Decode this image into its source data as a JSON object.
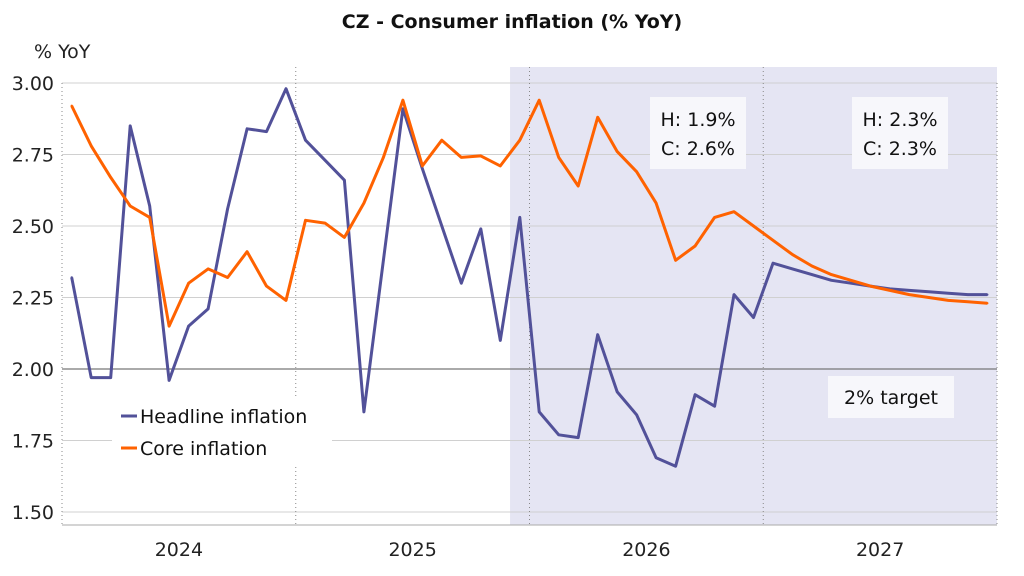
{
  "chart_data": {
    "type": "line",
    "title": "CZ - Consumer inflation (% YoY)",
    "ylabel": "% YoY",
    "xlabel": "",
    "ylim": [
      1.45,
      3.05
    ],
    "yticks": [
      "3.00",
      "2.75",
      "2.50",
      "2.25",
      "2.00",
      "1.75",
      "1.50"
    ],
    "ytick_values": [
      3.0,
      2.75,
      2.5,
      2.25,
      2.0,
      1.75,
      1.5
    ],
    "reference_line": 2.0,
    "years": [
      "2024",
      "2025",
      "2026",
      "2027"
    ],
    "forecast_start_index": 23,
    "grid": true,
    "legend_position": "bottom-left",
    "series": [
      {
        "name": "Headline inflation",
        "color": "#525199",
        "values": [
          2.32,
          1.97,
          1.97,
          2.85,
          2.57,
          1.96,
          2.15,
          2.21,
          2.56,
          2.84,
          2.83,
          2.98,
          2.8,
          2.73,
          2.66,
          1.85,
          2.38,
          2.91,
          2.7,
          2.5,
          2.3,
          2.49,
          2.1,
          2.53,
          1.85,
          1.77,
          1.76,
          2.12,
          1.92,
          1.84,
          1.69,
          1.66,
          1.91,
          1.87,
          2.26,
          2.18,
          2.37,
          2.35,
          2.33,
          2.31,
          2.3,
          2.29,
          2.28,
          2.275,
          2.27,
          2.265,
          2.26,
          2.26
        ]
      },
      {
        "name": "Core inflation",
        "color": "#FF6200",
        "values": [
          2.92,
          2.78,
          2.67,
          2.57,
          2.53,
          2.15,
          2.3,
          2.35,
          2.32,
          2.41,
          2.29,
          2.24,
          2.52,
          2.51,
          2.46,
          2.58,
          2.74,
          2.94,
          2.71,
          2.8,
          2.74,
          2.745,
          2.71,
          2.8,
          2.94,
          2.74,
          2.64,
          2.88,
          2.76,
          2.69,
          2.58,
          2.38,
          2.43,
          2.53,
          2.55,
          2.5,
          2.45,
          2.4,
          2.36,
          2.33,
          2.31,
          2.29,
          2.275,
          2.26,
          2.25,
          2.24,
          2.235,
          2.23
        ]
      }
    ],
    "annotations": {
      "avg_2026": [
        "H: 1.9%",
        "C: 2.6%"
      ],
      "avg_2027": [
        "H: 2.3%",
        "C: 2.3%"
      ],
      "target": "2% target"
    }
  },
  "colors": {
    "forecast_shade": "#e5e5f3",
    "grid": "#d0d0d0",
    "axis": "#777777"
  }
}
